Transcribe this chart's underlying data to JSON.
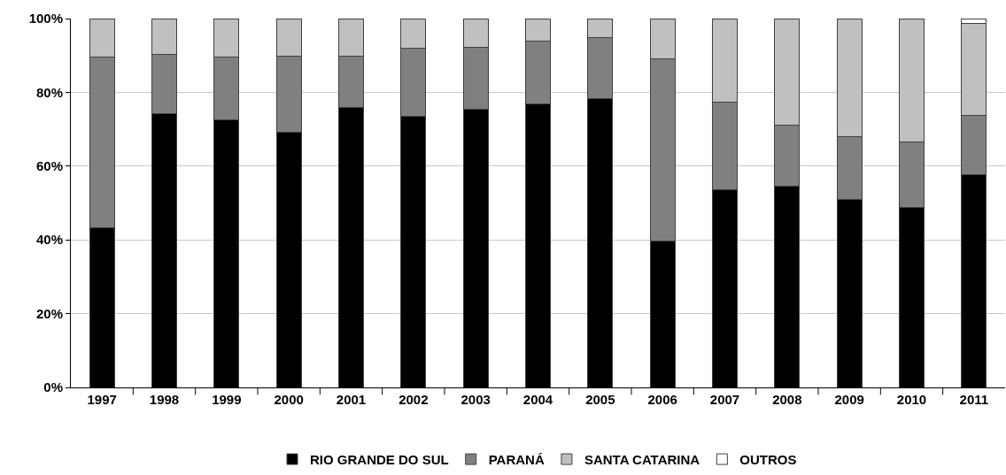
{
  "chart_data": {
    "type": "bar",
    "stacked": true,
    "categories": [
      "1997",
      "1998",
      "1999",
      "2000",
      "2001",
      "2002",
      "2003",
      "2004",
      "2005",
      "2006",
      "2007",
      "2008",
      "2009",
      "2010",
      "2011"
    ],
    "series": [
      {
        "name": "RIO GRANDE DO SUL",
        "color": "#000000",
        "values": [
          43.3,
          74.3,
          72.5,
          69.3,
          75.9,
          73.4,
          75.4,
          76.8,
          78.2,
          39.6,
          53.6,
          54.5,
          51.0,
          48.7,
          57.6
        ]
      },
      {
        "name": "PARANÁ",
        "color": "#808080",
        "values": [
          46.3,
          15.9,
          17.0,
          20.6,
          14.0,
          18.5,
          16.8,
          17.1,
          16.6,
          49.4,
          23.7,
          16.5,
          17.1,
          17.9,
          16.2
        ]
      },
      {
        "name": "SANTA CATARINA",
        "color": "#c0c0c0",
        "values": [
          10.4,
          9.8,
          10.5,
          10.1,
          10.1,
          8.1,
          7.8,
          6.1,
          5.2,
          11.0,
          22.7,
          29.0,
          31.9,
          33.4,
          25.0
        ]
      },
      {
        "name": "OUTROS",
        "color": "#ffffff",
        "values": [
          null,
          null,
          null,
          null,
          null,
          null,
          null,
          null,
          null,
          null,
          null,
          null,
          null,
          null,
          1.2
        ]
      }
    ],
    "ylim": [
      0,
      100
    ],
    "yticks": [
      {
        "value": 0,
        "label": "0%"
      },
      {
        "value": 20,
        "label": "20%"
      },
      {
        "value": 40,
        "label": "40%"
      },
      {
        "value": 60,
        "label": "60%"
      },
      {
        "value": 80,
        "label": "80%"
      },
      {
        "value": 100,
        "label": "100%"
      }
    ],
    "grid": "y",
    "legend": "bottom"
  }
}
